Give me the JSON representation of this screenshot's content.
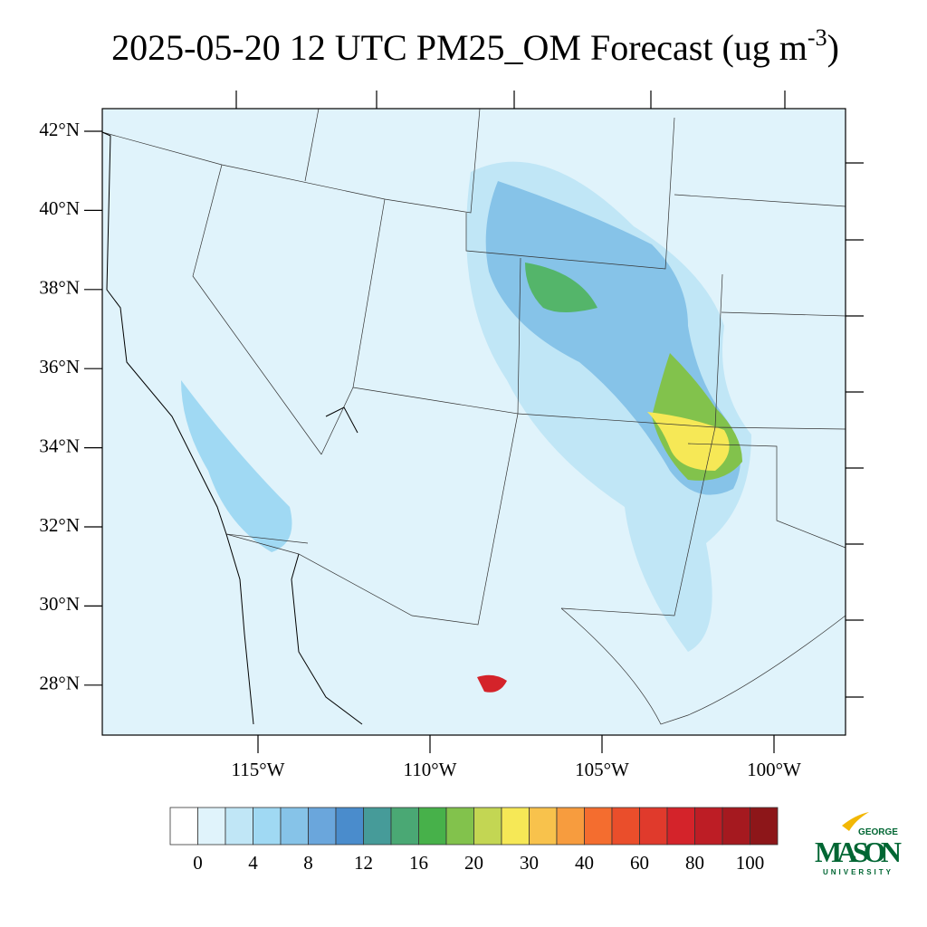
{
  "map": {
    "title": {
      "main": "2025-05-20 12 UTC PM25_OM Forecast (ug m",
      "superscript": "-3",
      "close": ")"
    },
    "lat_labels": [
      "42°N",
      "40°N",
      "38°N",
      "36°N",
      "34°N",
      "32°N",
      "30°N",
      "28°N"
    ],
    "lon_labels": [
      "115°W",
      "110°W",
      "105°W",
      "100°W"
    ],
    "colorbar": {
      "colors": [
        "#ffffff",
        "#e0f3fb",
        "#c0e6f6",
        "#a0d9f3",
        "#86c3e8",
        "#6aa6dc",
        "#4a8ccc",
        "#469b99",
        "#4aa874",
        "#47b14a",
        "#82c24c",
        "#c3d653",
        "#f6e856",
        "#f8c24c",
        "#f79c3e",
        "#f46d2f",
        "#ea4e2b",
        "#e03a2c",
        "#d4232a",
        "#bd1d25",
        "#a5191f",
        "#8d1619"
      ],
      "labels": [
        0,
        4,
        8,
        12,
        16,
        20,
        30,
        40,
        60,
        80,
        100
      ]
    },
    "logo": {
      "top": "GEORGE",
      "main": "MASON",
      "bottom": "UNIVERSITY"
    }
  }
}
